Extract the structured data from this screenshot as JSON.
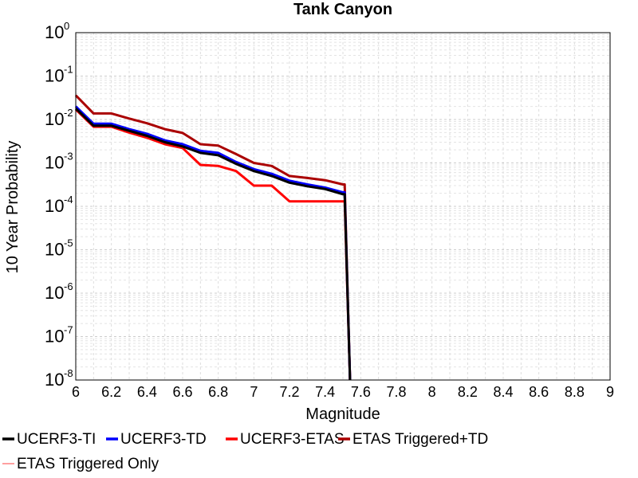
{
  "chart_data": {
    "type": "line",
    "title": "Tank Canyon",
    "xlabel": "Magnitude",
    "ylabel": "10 Year Probability",
    "xlim": [
      6,
      9
    ],
    "ylim": [
      1e-08,
      1
    ],
    "yscale": "log",
    "x_ticks": [
      "6",
      "6.2",
      "6.4",
      "6.6",
      "6.8",
      "7",
      "7.2",
      "7.4",
      "7.6",
      "7.8",
      "8",
      "8.2",
      "8.4",
      "8.6",
      "8.8",
      "9"
    ],
    "y_ticks": [
      {
        "base": "10",
        "exp": "-8"
      },
      {
        "base": "10",
        "exp": "-7"
      },
      {
        "base": "10",
        "exp": "-6"
      },
      {
        "base": "10",
        "exp": "-5"
      },
      {
        "base": "10",
        "exp": "-4"
      },
      {
        "base": "10",
        "exp": "-3"
      },
      {
        "base": "10",
        "exp": "-2"
      },
      {
        "base": "10",
        "exp": "-1"
      },
      {
        "base": "10",
        "exp": "0"
      }
    ],
    "grid": true,
    "legend_position": "bottom",
    "series": [
      {
        "name": "UCERF3-TI",
        "color": "#000000",
        "x": [
          6.0,
          6.1,
          6.2,
          6.3,
          6.4,
          6.5,
          6.6,
          6.7,
          6.8,
          6.9,
          7.0,
          7.1,
          7.2,
          7.3,
          7.4,
          7.5,
          7.51,
          7.54
        ],
        "y": [
          0.018,
          0.0072,
          0.0072,
          0.0055,
          0.0042,
          0.003,
          0.0024,
          0.0017,
          0.0015,
          0.00095,
          0.00065,
          0.0005,
          0.00035,
          0.00029,
          0.00025,
          0.00019,
          0.00019,
          1e-08
        ]
      },
      {
        "name": "UCERF3-TD",
        "color": "#0000ff",
        "x": [
          6.0,
          6.1,
          6.2,
          6.3,
          6.4,
          6.5,
          6.6,
          6.7,
          6.8,
          6.9,
          7.0,
          7.1,
          7.2,
          7.3,
          7.4,
          7.5,
          7.51,
          7.54
        ],
        "y": [
          0.02,
          0.008,
          0.008,
          0.006,
          0.0047,
          0.0033,
          0.0027,
          0.0019,
          0.0017,
          0.00105,
          0.00072,
          0.00056,
          0.00039,
          0.00032,
          0.00027,
          0.00021,
          0.00021,
          1e-08
        ]
      },
      {
        "name": "UCERF3-ETAS",
        "color": "#ff0000",
        "x": [
          6.0,
          6.1,
          6.2,
          6.3,
          6.4,
          6.5,
          6.6,
          6.7,
          6.8,
          6.9,
          7.0,
          7.1,
          7.2,
          7.3,
          7.4,
          7.5,
          7.51,
          7.54
        ],
        "y": [
          0.017,
          0.0068,
          0.0068,
          0.005,
          0.0038,
          0.0027,
          0.0022,
          0.0009,
          0.00085,
          0.00065,
          0.0003,
          0.0003,
          0.00013,
          0.00013,
          0.00013,
          0.00013,
          0.00013,
          1e-08
        ]
      },
      {
        "name": "ETAS Triggered+TD",
        "color": "#aa0000",
        "x": [
          6.0,
          6.1,
          6.2,
          6.3,
          6.4,
          6.5,
          6.6,
          6.7,
          6.8,
          6.9,
          7.0,
          7.1,
          7.2,
          7.3,
          7.4,
          7.5,
          7.51,
          7.54
        ],
        "y": [
          0.036,
          0.0138,
          0.0138,
          0.0105,
          0.0082,
          0.006,
          0.0049,
          0.0027,
          0.0025,
          0.0016,
          0.001,
          0.00085,
          0.0005,
          0.00045,
          0.0004,
          0.00032,
          0.00032,
          1e-08
        ]
      },
      {
        "name": "ETAS Triggered Only",
        "color": "#ff8080",
        "x": [],
        "y": []
      }
    ]
  }
}
